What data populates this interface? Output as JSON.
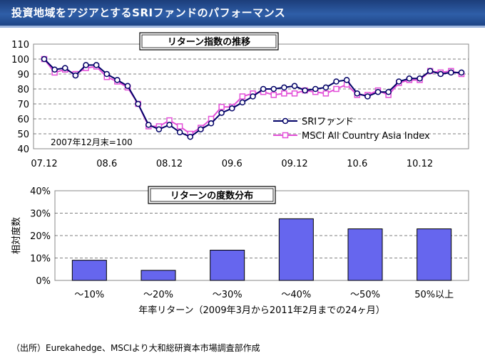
{
  "header": {
    "title": "投資地域をアジアとするSRIファンドのパフォーマンス"
  },
  "source_note": "（出所）Eurekahedge、MSCIより大和総研資本市場調査部作成",
  "colors": {
    "banner": "#24498f",
    "sri_line": "#000066",
    "msci_line": "#e34fd8",
    "bars": "#6666ee"
  },
  "chart_data": [
    {
      "type": "line",
      "title": "リターン指数の推移",
      "annotation": "2007年12月末=100",
      "x_ticks": [
        "07.12",
        "08.6",
        "08.12",
        "09.6",
        "09.12",
        "10.6",
        "10.12"
      ],
      "y_ticks": [
        "110",
        "100",
        "90",
        "80",
        "70",
        "60",
        "50",
        "40"
      ],
      "ylim": [
        40,
        110
      ],
      "grid": "horizontal dashed",
      "legend": "inside lower-right",
      "series": [
        {
          "name": "SRIファンド",
          "marker": "circle",
          "values": [
            100,
            93,
            94,
            89,
            96,
            96,
            90,
            86,
            82,
            70,
            56,
            53,
            56,
            51,
            48,
            53,
            57,
            64,
            67,
            71,
            75,
            80,
            80,
            81,
            82,
            79,
            80,
            81,
            85,
            86,
            77,
            75,
            78,
            78,
            85,
            87,
            87,
            92,
            90,
            91,
            91
          ]
        },
        {
          "name": "MSCI All Country Asia Index",
          "marker": "square",
          "values": [
            100,
            91,
            93,
            90,
            94,
            95,
            88,
            85,
            81,
            70,
            55,
            55,
            59,
            55,
            50,
            54,
            60,
            68,
            68,
            75,
            77,
            78,
            76,
            77,
            77,
            79,
            78,
            77,
            80,
            83,
            76,
            76,
            79,
            76,
            84,
            86,
            86,
            92,
            91,
            92,
            90
          ]
        }
      ]
    },
    {
      "type": "bar",
      "title": "リターンの度数分布",
      "xlabel": "年率リターン（2009年3月から2011年2月までの24ヶ月）",
      "ylabel": "相対度数",
      "y_ticks": [
        "40%",
        "30%",
        "20%",
        "10%",
        "0%"
      ],
      "ylim": [
        0,
        40
      ],
      "categories": [
        "～10%",
        "～20%",
        "～30%",
        "～40%",
        "～50%",
        "50%以上"
      ],
      "values": [
        9,
        4.5,
        13.5,
        27.5,
        23,
        23
      ]
    }
  ]
}
